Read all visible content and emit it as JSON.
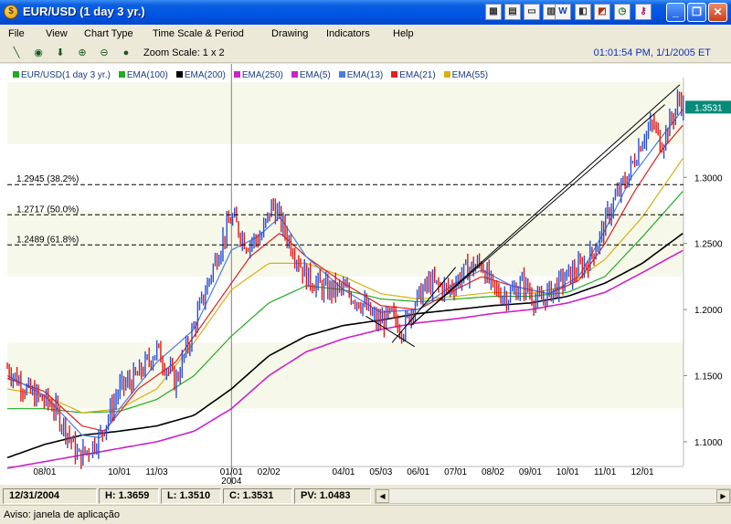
{
  "window": {
    "title": "EUR/USD (1 day  3 yr.)",
    "toolbar_icons": [
      "format-icon",
      "document-icon",
      "folder-icon",
      "chart-icon",
      "word-icon",
      "page-icon",
      "excel-icon",
      "clock-icon",
      "key-icon"
    ]
  },
  "menu": [
    "File",
    "View",
    "Chart Type",
    "Time Scale & Period",
    "Drawing",
    "Indicators",
    "Help"
  ],
  "toolbar": {
    "zoom_scale": "Zoom Scale: 1 x 2",
    "datetime": "01:01:54 PM, 1/1/2005 ET"
  },
  "legend": [
    {
      "label": "EUR/USD(1 day  3 yr.)",
      "color": "#22aa22"
    },
    {
      "label": "EMA(100)",
      "color": "#22aa22"
    },
    {
      "label": "EMA(200)",
      "color": "#000000"
    },
    {
      "label": "EMA(250)",
      "color": "#cc22cc"
    },
    {
      "label": "EMA(5)",
      "color": "#cc22cc"
    },
    {
      "label": "EMA(13)",
      "color": "#4a7be8"
    },
    {
      "label": "EMA(21)",
      "color": "#e02020"
    },
    {
      "label": "EMA(55)",
      "color": "#d8b010"
    }
  ],
  "chart_data": {
    "type": "line",
    "y_ticks": [
      "1.3000",
      "1.2500",
      "1.2000",
      "1.1500",
      "1.1000"
    ],
    "y_tick_values": [
      1.3,
      1.25,
      1.2,
      1.15,
      1.1
    ],
    "ylim": [
      1.082,
      1.372
    ],
    "x_ticks": [
      {
        "label": "08/01",
        "month": 1
      },
      {
        "label": "10/01",
        "month": 3
      },
      {
        "label": "11/03",
        "month": 4
      },
      {
        "label": "01/01",
        "month": 6
      },
      {
        "label": "02/02",
        "month": 7
      },
      {
        "label": "04/01",
        "month": 9
      },
      {
        "label": "05/03",
        "month": 10
      },
      {
        "label": "06/01",
        "month": 11
      },
      {
        "label": "07/01",
        "month": 12
      },
      {
        "label": "08/02",
        "month": 13
      },
      {
        "label": "09/01",
        "month": 14
      },
      {
        "label": "10/01",
        "month": 15
      },
      {
        "label": "11/01",
        "month": 16
      },
      {
        "label": "12/01",
        "month": 17
      }
    ],
    "year_label": "2004",
    "xlim": [
      0,
      18.1
    ],
    "current_price": "1.3531",
    "current_value": 1.3531,
    "fib_levels": [
      {
        "label": "1.2945 (38.2%)",
        "value": 1.2945
      },
      {
        "label": "1.2717 (50.0%)",
        "value": 1.2717
      },
      {
        "label": "1.2489 (61.8%)",
        "value": 1.2489
      }
    ],
    "price_keys": [
      [
        0,
        1.156
      ],
      [
        0.6,
        1.137
      ],
      [
        1.2,
        1.128
      ],
      [
        1.6,
        1.108
      ],
      [
        1.9,
        1.088
      ],
      [
        2.2,
        1.095
      ],
      [
        2.5,
        1.105
      ],
      [
        3,
        1.14
      ],
      [
        3.5,
        1.15
      ],
      [
        4,
        1.17
      ],
      [
        4.5,
        1.145
      ],
      [
        4.8,
        1.17
      ],
      [
        5.2,
        1.205
      ],
      [
        5.6,
        1.24
      ],
      [
        6,
        1.27
      ],
      [
        6.4,
        1.25
      ],
      [
        6.8,
        1.255
      ],
      [
        7.1,
        1.28
      ],
      [
        7.5,
        1.255
      ],
      [
        8,
        1.225
      ],
      [
        8.5,
        1.215
      ],
      [
        9,
        1.215
      ],
      [
        9.5,
        1.205
      ],
      [
        9.9,
        1.19
      ],
      [
        10.3,
        1.195
      ],
      [
        10.6,
        1.185
      ],
      [
        10.9,
        1.205
      ],
      [
        11.3,
        1.22
      ],
      [
        11.8,
        1.215
      ],
      [
        12.3,
        1.23
      ],
      [
        12.7,
        1.235
      ],
      [
        13,
        1.215
      ],
      [
        13.4,
        1.21
      ],
      [
        13.8,
        1.22
      ],
      [
        14.2,
        1.205
      ],
      [
        14.6,
        1.215
      ],
      [
        15,
        1.225
      ],
      [
        15.5,
        1.235
      ],
      [
        15.8,
        1.25
      ],
      [
        16.2,
        1.28
      ],
      [
        16.6,
        1.3
      ],
      [
        17,
        1.33
      ],
      [
        17.3,
        1.34
      ],
      [
        17.5,
        1.325
      ],
      [
        17.8,
        1.345
      ],
      [
        18,
        1.36
      ],
      [
        18.1,
        1.3531
      ]
    ],
    "ema_keys": {
      "ema13": [
        [
          0,
          1.15
        ],
        [
          1,
          1.135
        ],
        [
          2,
          1.105
        ],
        [
          2.5,
          1.103
        ],
        [
          3,
          1.125
        ],
        [
          4,
          1.16
        ],
        [
          5,
          1.185
        ],
        [
          6,
          1.245
        ],
        [
          6.7,
          1.255
        ],
        [
          7.3,
          1.27
        ],
        [
          8,
          1.24
        ],
        [
          9,
          1.215
        ],
        [
          10,
          1.198
        ],
        [
          11,
          1.2
        ],
        [
          12,
          1.22
        ],
        [
          12.7,
          1.23
        ],
        [
          13.5,
          1.218
        ],
        [
          14.5,
          1.212
        ],
        [
          15.3,
          1.225
        ],
        [
          16,
          1.26
        ],
        [
          16.7,
          1.3
        ],
        [
          17.5,
          1.33
        ],
        [
          18.1,
          1.352
        ]
      ],
      "ema21": [
        [
          0,
          1.148
        ],
        [
          1,
          1.138
        ],
        [
          2,
          1.112
        ],
        [
          2.6,
          1.108
        ],
        [
          3.5,
          1.14
        ],
        [
          4.5,
          1.16
        ],
        [
          5.5,
          1.2
        ],
        [
          6.5,
          1.24
        ],
        [
          7.3,
          1.258
        ],
        [
          8,
          1.24
        ],
        [
          9,
          1.22
        ],
        [
          10,
          1.203
        ],
        [
          11,
          1.2
        ],
        [
          12,
          1.215
        ],
        [
          12.7,
          1.225
        ],
        [
          13.5,
          1.218
        ],
        [
          14.5,
          1.212
        ],
        [
          15.3,
          1.222
        ],
        [
          16,
          1.25
        ],
        [
          16.8,
          1.29
        ],
        [
          17.5,
          1.32
        ],
        [
          18.1,
          1.34
        ]
      ],
      "ema55": [
        [
          0,
          1.14
        ],
        [
          1,
          1.135
        ],
        [
          2,
          1.122
        ],
        [
          3,
          1.125
        ],
        [
          4,
          1.14
        ],
        [
          5,
          1.175
        ],
        [
          6,
          1.215
        ],
        [
          7,
          1.235
        ],
        [
          8,
          1.235
        ],
        [
          9,
          1.225
        ],
        [
          10,
          1.212
        ],
        [
          11,
          1.208
        ],
        [
          12,
          1.21
        ],
        [
          13,
          1.213
        ],
        [
          14,
          1.212
        ],
        [
          15,
          1.218
        ],
        [
          16,
          1.238
        ],
        [
          17,
          1.27
        ],
        [
          18.1,
          1.315
        ]
      ],
      "ema100": [
        [
          0,
          1.125
        ],
        [
          1,
          1.125
        ],
        [
          2,
          1.122
        ],
        [
          3,
          1.123
        ],
        [
          4,
          1.132
        ],
        [
          5,
          1.15
        ],
        [
          6,
          1.18
        ],
        [
          7,
          1.205
        ],
        [
          8,
          1.218
        ],
        [
          9,
          1.215
        ],
        [
          10,
          1.208
        ],
        [
          11,
          1.206
        ],
        [
          12,
          1.208
        ],
        [
          13,
          1.21
        ],
        [
          14,
          1.21
        ],
        [
          15,
          1.213
        ],
        [
          16,
          1.225
        ],
        [
          17,
          1.255
        ],
        [
          18.1,
          1.29
        ]
      ],
      "ema200": [
        [
          0,
          1.088
        ],
        [
          1,
          1.098
        ],
        [
          2,
          1.105
        ],
        [
          3,
          1.108
        ],
        [
          4,
          1.112
        ],
        [
          5,
          1.12
        ],
        [
          6,
          1.14
        ],
        [
          7,
          1.165
        ],
        [
          8,
          1.18
        ],
        [
          9,
          1.188
        ],
        [
          10,
          1.192
        ],
        [
          11,
          1.197
        ],
        [
          12,
          1.2
        ],
        [
          13,
          1.203
        ],
        [
          14,
          1.205
        ],
        [
          15,
          1.21
        ],
        [
          16,
          1.22
        ],
        [
          17,
          1.235
        ],
        [
          18.1,
          1.258
        ]
      ],
      "ema250": [
        [
          0,
          1.08
        ],
        [
          1,
          1.085
        ],
        [
          2,
          1.09
        ],
        [
          3,
          1.095
        ],
        [
          4,
          1.1
        ],
        [
          5,
          1.108
        ],
        [
          6,
          1.125
        ],
        [
          7,
          1.15
        ],
        [
          8,
          1.168
        ],
        [
          9,
          1.178
        ],
        [
          10,
          1.185
        ],
        [
          11,
          1.19
        ],
        [
          12,
          1.193
        ],
        [
          13,
          1.197
        ],
        [
          14,
          1.2
        ],
        [
          15,
          1.205
        ],
        [
          16,
          1.213
        ],
        [
          17,
          1.228
        ],
        [
          18.1,
          1.245
        ]
      ]
    },
    "trendlines": [
      {
        "name": "channel-top",
        "from": [
          10.8,
          1.188
        ],
        "to": [
          18.0,
          1.37
        ]
      },
      {
        "name": "channel-mid",
        "from": [
          10.8,
          1.188
        ],
        "to": [
          17.6,
          1.355
        ]
      },
      {
        "name": "triangle-leg-a",
        "from": [
          9.6,
          1.195
        ],
        "to": [
          10.9,
          1.172
        ]
      },
      {
        "name": "triangle-leg-b",
        "from": [
          10.3,
          1.175
        ],
        "to": [
          12.0,
          1.232
        ]
      }
    ]
  },
  "status": {
    "date": "12/31/2004",
    "high": "H: 1.3659",
    "low": "L: 1.3510",
    "close": "C: 1.3531",
    "pv": "PV: 1.0483"
  },
  "info": "Aviso: janela de aplicação"
}
